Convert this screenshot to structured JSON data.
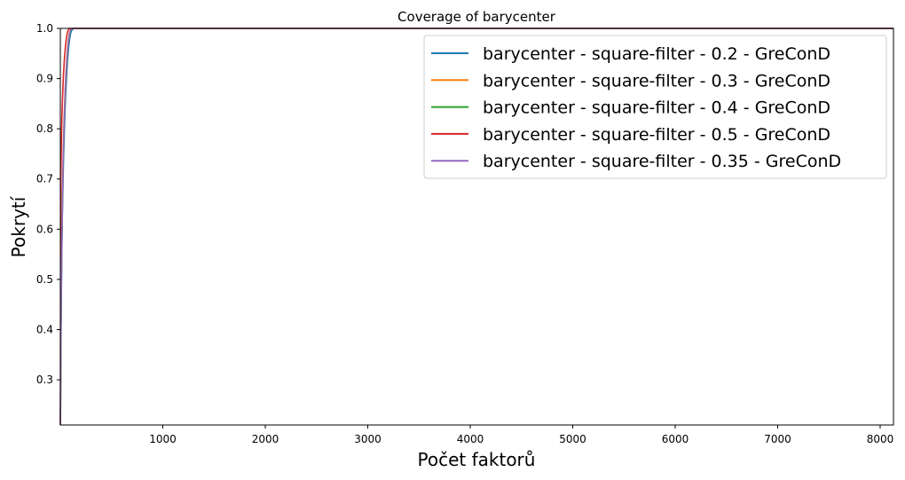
{
  "chart_data": {
    "type": "line",
    "title": "Coverage of barycenter",
    "xlabel": "Počet faktorů",
    "ylabel": "Pokrytí",
    "xlim": [
      0,
      8130
    ],
    "ylim": [
      0.21,
      1.0
    ],
    "x_ticks": [
      1000,
      2000,
      3000,
      4000,
      5000,
      6000,
      7000,
      8000
    ],
    "x_tick_labels": [
      "1000",
      "2000",
      "3000",
      "4000",
      "5000",
      "6000",
      "7000",
      "8000"
    ],
    "y_ticks": [
      0.3,
      0.4,
      0.5,
      0.6,
      0.7,
      0.8,
      0.9,
      1.0
    ],
    "y_tick_labels": [
      "0.3",
      "0.4",
      "0.5",
      "0.6",
      "0.7",
      "0.8",
      "0.9",
      "1.0"
    ],
    "grid": false,
    "legend_position": "top-right",
    "series": [
      {
        "name": "barycenter - square-filter - 0.2 - GreConD",
        "color": "#1f77b4",
        "x": [
          1,
          5,
          10,
          15,
          20,
          30,
          40,
          50,
          60,
          70,
          80,
          90,
          100,
          110,
          130,
          160,
          200,
          400,
          1000,
          3000,
          8130
        ],
        "y": [
          0.21,
          0.36,
          0.47,
          0.56,
          0.63,
          0.73,
          0.8,
          0.86,
          0.9,
          0.935,
          0.96,
          0.978,
          0.99,
          0.996,
          1.0,
          1.0,
          1.0,
          1.0,
          1.0,
          1.0,
          1.0
        ]
      },
      {
        "name": "barycenter - square-filter - 0.3 - GreConD",
        "color": "#ff7f0e",
        "x": [
          1,
          5,
          10,
          15,
          20,
          30,
          40,
          50,
          60,
          70,
          80,
          90,
          100,
          120,
          160,
          200,
          400,
          1000,
          3000,
          8130
        ],
        "y": [
          0.21,
          0.39,
          0.5,
          0.59,
          0.66,
          0.77,
          0.84,
          0.89,
          0.93,
          0.96,
          0.98,
          0.992,
          0.998,
          1.0,
          1.0,
          1.0,
          1.0,
          1.0,
          1.0,
          1.0
        ]
      },
      {
        "name": "barycenter - square-filter - 0.4 - GreConD",
        "color": "#2ca02c",
        "x": [
          1,
          5,
          10,
          15,
          20,
          30,
          40,
          50,
          60,
          70,
          80,
          90,
          100,
          120,
          160,
          200,
          400,
          1000,
          3000,
          8130
        ],
        "y": [
          0.21,
          0.37,
          0.48,
          0.57,
          0.64,
          0.75,
          0.82,
          0.875,
          0.915,
          0.948,
          0.972,
          0.988,
          0.996,
          1.0,
          1.0,
          1.0,
          1.0,
          1.0,
          1.0,
          1.0
        ]
      },
      {
        "name": "barycenter - square-filter - 0.5 - GreConD",
        "color": "#d62728",
        "x": [
          1,
          3,
          5,
          10,
          15,
          20,
          30,
          40,
          50,
          60,
          70,
          80,
          90,
          110,
          160,
          200,
          400,
          1000,
          3000,
          8130
        ],
        "y": [
          0.21,
          0.6,
          0.7,
          0.77,
          0.82,
          0.855,
          0.905,
          0.94,
          0.965,
          0.982,
          0.993,
          0.998,
          1.0,
          1.0,
          1.0,
          1.0,
          1.0,
          1.0,
          1.0,
          1.0
        ]
      },
      {
        "name": "barycenter - square-filter - 0.35 - GreConD",
        "color": "#9467bd",
        "x": [
          1,
          5,
          10,
          15,
          20,
          30,
          40,
          50,
          60,
          70,
          80,
          90,
          100,
          120,
          160,
          200,
          400,
          1000,
          3000,
          8130
        ],
        "y": [
          0.21,
          0.38,
          0.49,
          0.58,
          0.65,
          0.76,
          0.83,
          0.885,
          0.925,
          0.955,
          0.977,
          0.99,
          0.997,
          1.0,
          1.0,
          1.0,
          1.0,
          1.0,
          1.0,
          1.0
        ]
      }
    ]
  }
}
